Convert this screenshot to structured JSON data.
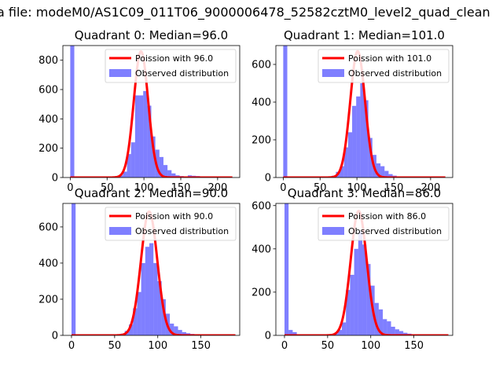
{
  "figure": {
    "suptitle": "a file: modeM0/AS1C09_011T06_9000006478_52582cztM0_level2_quad_clean"
  },
  "colors": {
    "poisson": "#ff0000",
    "observed": "#0000ff",
    "axes": "#000000"
  },
  "chart_data": [
    {
      "type": "bar",
      "title": "Quadrant 0: Median=96.0",
      "xlim": [
        -10,
        230
      ],
      "ylim": [
        0,
        900
      ],
      "xticks": [
        0,
        50,
        100,
        150,
        200
      ],
      "yticks": [
        0,
        200,
        400,
        600,
        800
      ],
      "legend": "top-right",
      "legend_entries": [
        "Poission with 96.0",
        "Observed distribution"
      ],
      "poisson_mean": 96.0,
      "poisson_peak": 860,
      "bin_width": 5.5,
      "x_range": [
        0,
        220
      ],
      "observed_bins": [
        {
          "x": 0,
          "y": 900
        },
        {
          "x": 5.5,
          "y": 4
        },
        {
          "x": 11,
          "y": 2
        },
        {
          "x": 16.5,
          "y": 2
        },
        {
          "x": 22,
          "y": 1
        },
        {
          "x": 27.5,
          "y": 2
        },
        {
          "x": 33,
          "y": 2
        },
        {
          "x": 38.5,
          "y": 2
        },
        {
          "x": 44,
          "y": 2
        },
        {
          "x": 49.5,
          "y": 2
        },
        {
          "x": 55,
          "y": 3
        },
        {
          "x": 60.5,
          "y": 6
        },
        {
          "x": 66,
          "y": 15
        },
        {
          "x": 71.5,
          "y": 40
        },
        {
          "x": 77,
          "y": 160
        },
        {
          "x": 82.5,
          "y": 240
        },
        {
          "x": 88,
          "y": 560
        },
        {
          "x": 93.5,
          "y": 560
        },
        {
          "x": 99,
          "y": 590
        },
        {
          "x": 104.5,
          "y": 490
        },
        {
          "x": 110,
          "y": 280
        },
        {
          "x": 115.5,
          "y": 190
        },
        {
          "x": 121,
          "y": 140
        },
        {
          "x": 126.5,
          "y": 85
        },
        {
          "x": 132,
          "y": 50
        },
        {
          "x": 137.5,
          "y": 28
        },
        {
          "x": 143,
          "y": 15
        },
        {
          "x": 148.5,
          "y": 10
        },
        {
          "x": 154,
          "y": 8
        },
        {
          "x": 159.5,
          "y": 15
        },
        {
          "x": 165,
          "y": 12
        },
        {
          "x": 170.5,
          "y": 10
        },
        {
          "x": 176,
          "y": 8
        },
        {
          "x": 181.5,
          "y": 6
        },
        {
          "x": 187,
          "y": 5
        },
        {
          "x": 192.5,
          "y": 4
        },
        {
          "x": 198,
          "y": 3
        },
        {
          "x": 203.5,
          "y": 3
        },
        {
          "x": 209,
          "y": 2
        },
        {
          "x": 214.5,
          "y": 2
        }
      ]
    },
    {
      "type": "bar",
      "title": "Quadrant 1: Median=101.0",
      "xlim": [
        -10,
        230
      ],
      "ylim": [
        0,
        700
      ],
      "xticks": [
        0,
        50,
        100,
        150,
        200
      ],
      "yticks": [
        0,
        200,
        400,
        600
      ],
      "legend": "top-right",
      "legend_entries": [
        "Poission with 101.0",
        "Observed distribution"
      ],
      "poisson_mean": 101.0,
      "poisson_peak": 670,
      "bin_width": 5.5,
      "x_range": [
        0,
        220
      ],
      "observed_bins": [
        {
          "x": 0,
          "y": 700
        },
        {
          "x": 5.5,
          "y": 3
        },
        {
          "x": 11,
          "y": 2
        },
        {
          "x": 16.5,
          "y": 2
        },
        {
          "x": 22,
          "y": 1
        },
        {
          "x": 27.5,
          "y": 2
        },
        {
          "x": 33,
          "y": 1
        },
        {
          "x": 38.5,
          "y": 2
        },
        {
          "x": 44,
          "y": 2
        },
        {
          "x": 49.5,
          "y": 2
        },
        {
          "x": 55,
          "y": 3
        },
        {
          "x": 60.5,
          "y": 5
        },
        {
          "x": 66,
          "y": 10
        },
        {
          "x": 71.5,
          "y": 30
        },
        {
          "x": 77,
          "y": 60
        },
        {
          "x": 82.5,
          "y": 160
        },
        {
          "x": 88,
          "y": 240
        },
        {
          "x": 93.5,
          "y": 380
        },
        {
          "x": 99,
          "y": 430
        },
        {
          "x": 104.5,
          "y": 500
        },
        {
          "x": 110,
          "y": 410
        },
        {
          "x": 115.5,
          "y": 210
        },
        {
          "x": 121,
          "y": 120
        },
        {
          "x": 126.5,
          "y": 75
        },
        {
          "x": 132,
          "y": 60
        },
        {
          "x": 137.5,
          "y": 35
        },
        {
          "x": 143,
          "y": 18
        },
        {
          "x": 148.5,
          "y": 10
        },
        {
          "x": 154,
          "y": 6
        },
        {
          "x": 159.5,
          "y": 4
        },
        {
          "x": 165,
          "y": 3
        },
        {
          "x": 170.5,
          "y": 2
        },
        {
          "x": 176,
          "y": 2
        },
        {
          "x": 181.5,
          "y": 2
        },
        {
          "x": 187,
          "y": 1
        },
        {
          "x": 192.5,
          "y": 1
        },
        {
          "x": 198,
          "y": 1
        },
        {
          "x": 203.5,
          "y": 1
        },
        {
          "x": 209,
          "y": 1
        },
        {
          "x": 214.5,
          "y": 1
        }
      ]
    },
    {
      "type": "bar",
      "title": "Quadrant 2: Median=90.0",
      "xlim": [
        -10,
        195
      ],
      "ylim": [
        0,
        730
      ],
      "xticks": [
        0,
        50,
        100,
        150
      ],
      "yticks": [
        0,
        200,
        400,
        600
      ],
      "legend": "top-right",
      "legend_entries": [
        "Poission with 90.0",
        "Observed distribution"
      ],
      "poisson_mean": 90.0,
      "poisson_peak": 685,
      "bin_width": 4.75,
      "x_range": [
        0,
        190
      ],
      "observed_bins": [
        {
          "x": 0,
          "y": 730
        },
        {
          "x": 4.75,
          "y": 3
        },
        {
          "x": 9.5,
          "y": 2
        },
        {
          "x": 14.25,
          "y": 2
        },
        {
          "x": 19,
          "y": 1
        },
        {
          "x": 23.75,
          "y": 2
        },
        {
          "x": 28.5,
          "y": 1
        },
        {
          "x": 33.25,
          "y": 2
        },
        {
          "x": 38,
          "y": 2
        },
        {
          "x": 42.75,
          "y": 2
        },
        {
          "x": 47.5,
          "y": 3
        },
        {
          "x": 52.25,
          "y": 5
        },
        {
          "x": 57,
          "y": 10
        },
        {
          "x": 61.75,
          "y": 25
        },
        {
          "x": 66.5,
          "y": 60
        },
        {
          "x": 71.25,
          "y": 150
        },
        {
          "x": 76,
          "y": 240
        },
        {
          "x": 80.75,
          "y": 400
        },
        {
          "x": 85.5,
          "y": 490
        },
        {
          "x": 90.25,
          "y": 510
        },
        {
          "x": 95,
          "y": 400
        },
        {
          "x": 99.75,
          "y": 300
        },
        {
          "x": 104.5,
          "y": 200
        },
        {
          "x": 109.25,
          "y": 120
        },
        {
          "x": 114,
          "y": 65
        },
        {
          "x": 118.75,
          "y": 50
        },
        {
          "x": 123.5,
          "y": 30
        },
        {
          "x": 128.25,
          "y": 18
        },
        {
          "x": 133,
          "y": 12
        },
        {
          "x": 137.75,
          "y": 8
        },
        {
          "x": 142.5,
          "y": 5
        },
        {
          "x": 147.25,
          "y": 3
        },
        {
          "x": 152,
          "y": 2
        },
        {
          "x": 156.75,
          "y": 2
        },
        {
          "x": 161.5,
          "y": 2
        },
        {
          "x": 166.25,
          "y": 1
        },
        {
          "x": 171,
          "y": 1
        },
        {
          "x": 175.75,
          "y": 1
        },
        {
          "x": 180.5,
          "y": 1
        },
        {
          "x": 185.25,
          "y": 1
        }
      ]
    },
    {
      "type": "bar",
      "title": "Quadrant 3: Median=86.0",
      "xlim": [
        -10,
        195
      ],
      "ylim": [
        0,
        610
      ],
      "xticks": [
        0,
        50,
        100,
        150
      ],
      "yticks": [
        0,
        200,
        400,
        600
      ],
      "legend": "top-right",
      "legend_entries": [
        "Poission with 86.0",
        "Observed distribution"
      ],
      "poisson_mean": 86.0,
      "poisson_peak": 575,
      "bin_width": 4.75,
      "x_range": [
        0,
        190
      ],
      "observed_bins": [
        {
          "x": 0,
          "y": 610
        },
        {
          "x": 4.75,
          "y": 25
        },
        {
          "x": 9.5,
          "y": 15
        },
        {
          "x": 14.25,
          "y": 3
        },
        {
          "x": 19,
          "y": 2
        },
        {
          "x": 23.75,
          "y": 2
        },
        {
          "x": 28.5,
          "y": 1
        },
        {
          "x": 33.25,
          "y": 2
        },
        {
          "x": 38,
          "y": 2
        },
        {
          "x": 42.75,
          "y": 2
        },
        {
          "x": 47.5,
          "y": 3
        },
        {
          "x": 52.25,
          "y": 5
        },
        {
          "x": 57,
          "y": 10
        },
        {
          "x": 61.75,
          "y": 25
        },
        {
          "x": 66.5,
          "y": 60
        },
        {
          "x": 71.25,
          "y": 210
        },
        {
          "x": 76,
          "y": 280
        },
        {
          "x": 80.75,
          "y": 400
        },
        {
          "x": 85.5,
          "y": 480
        },
        {
          "x": 90.25,
          "y": 420
        },
        {
          "x": 95,
          "y": 330
        },
        {
          "x": 99.75,
          "y": 230
        },
        {
          "x": 104.5,
          "y": 150
        },
        {
          "x": 109.25,
          "y": 120
        },
        {
          "x": 114,
          "y": 75
        },
        {
          "x": 118.75,
          "y": 65
        },
        {
          "x": 123.5,
          "y": 40
        },
        {
          "x": 128.25,
          "y": 28
        },
        {
          "x": 133,
          "y": 20
        },
        {
          "x": 137.75,
          "y": 12
        },
        {
          "x": 142.5,
          "y": 8
        },
        {
          "x": 147.25,
          "y": 5
        },
        {
          "x": 152,
          "y": 3
        },
        {
          "x": 156.75,
          "y": 2
        },
        {
          "x": 161.5,
          "y": 2
        },
        {
          "x": 166.25,
          "y": 1
        },
        {
          "x": 171,
          "y": 1
        },
        {
          "x": 175.75,
          "y": 1
        },
        {
          "x": 180.5,
          "y": 1
        },
        {
          "x": 185.25,
          "y": 1
        }
      ]
    }
  ]
}
